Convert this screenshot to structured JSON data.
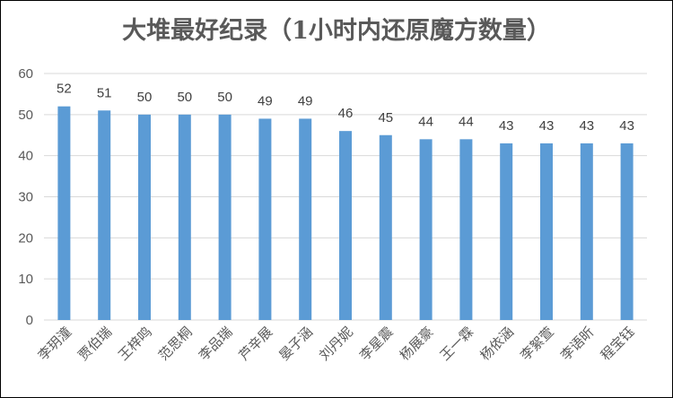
{
  "chart_data": {
    "type": "bar",
    "title": "大堆最好纪录（1小时内还原魔方数量）",
    "categories": [
      "李玥潼",
      "贾伯瑞",
      "王梓鸣",
      "范思桐",
      "李品瑞",
      "芦辛展",
      "晏子涵",
      "刘丹妮",
      "李星震",
      "杨展豪",
      "王一霖",
      "杨依涵",
      "李絮萱",
      "李语昕",
      "程宝钰"
    ],
    "values": [
      52,
      51,
      50,
      50,
      50,
      49,
      49,
      46,
      45,
      44,
      44,
      43,
      43,
      43,
      43
    ],
    "ylim": [
      0,
      60
    ],
    "yticks": [
      0,
      10,
      20,
      30,
      40,
      50,
      60
    ],
    "grid": true,
    "legend": "none",
    "bar_color": "#5B9BD5",
    "grid_color": "#D9D9D9",
    "text_color": "#595959"
  }
}
